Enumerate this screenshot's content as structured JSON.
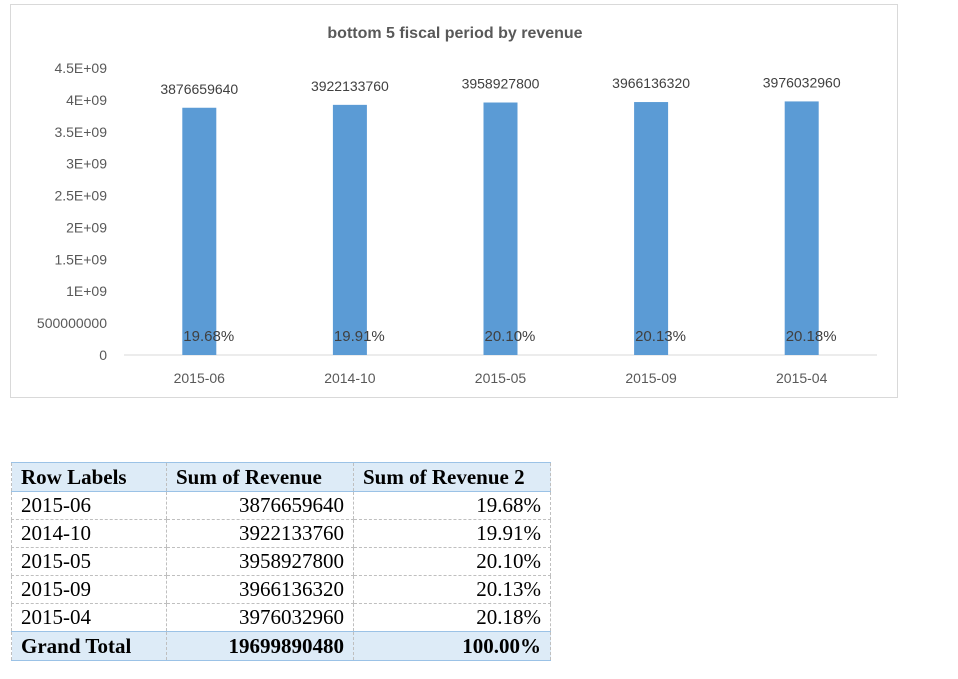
{
  "chart_data": {
    "type": "bar",
    "title": "bottom 5 fiscal period by revenue",
    "categories": [
      "2015-06",
      "2014-10",
      "2015-05",
      "2015-09",
      "2015-04"
    ],
    "values": [
      3876659640,
      3922133760,
      3958927800,
      3966136320,
      3976032960
    ],
    "value_labels": [
      "3876659640",
      "3922133760",
      "3958927800",
      "3966136320",
      "3976032960"
    ],
    "percent_labels": [
      "19.68%",
      "19.91%",
      "20.10%",
      "20.13%",
      "20.18%"
    ],
    "ylim": [
      0,
      4500000000
    ],
    "yticks": [
      0,
      500000000,
      1000000000,
      1500000000,
      2000000000,
      2500000000,
      3000000000,
      3500000000,
      4000000000,
      4500000000
    ],
    "ytick_labels": [
      "0",
      "500000000",
      "1E+09",
      "1.5E+09",
      "2E+09",
      "2.5E+09",
      "3E+09",
      "3.5E+09",
      "4E+09",
      "4.5E+09"
    ],
    "xlabel": "",
    "ylabel": "",
    "grid": false,
    "legend": "none",
    "bar_color": "#5b9bd5"
  },
  "pivot_table": {
    "headers": [
      "Row Labels",
      "Sum of Revenue",
      "Sum of Revenue 2"
    ],
    "rows": [
      [
        "2015-06",
        "3876659640",
        "19.68%"
      ],
      [
        "2014-10",
        "3922133760",
        "19.91%"
      ],
      [
        "2015-05",
        "3958927800",
        "20.10%"
      ],
      [
        "2015-09",
        "3966136320",
        "20.13%"
      ],
      [
        "2015-04",
        "3976032960",
        "20.18%"
      ]
    ],
    "total": [
      "Grand Total",
      "19699890480",
      "100.00%"
    ],
    "header_color": "#ddebf7"
  }
}
